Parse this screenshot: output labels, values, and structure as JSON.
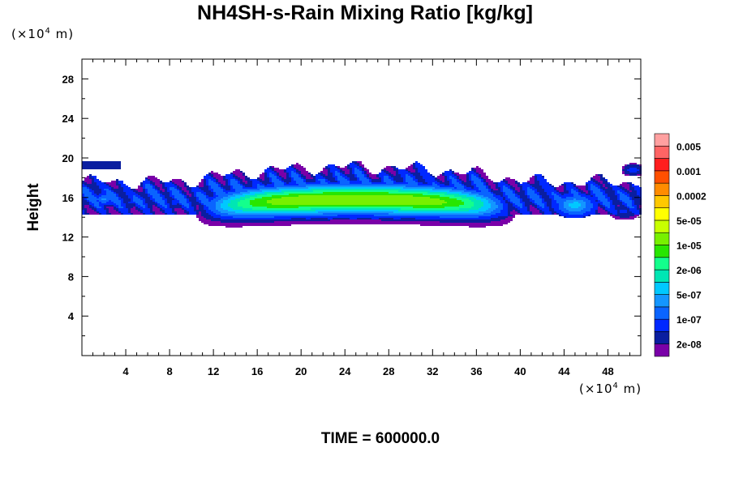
{
  "chart_data": {
    "type": "contour-fill",
    "title": "NH4SH-s-Rain Mixing Ratio [kg/kg]",
    "ylabel": "Height",
    "x_unit": {
      "prefix": "(×10",
      "exponent": "4",
      "suffix": " m)"
    },
    "y_unit": {
      "prefix": "(×10",
      "exponent": "4",
      "suffix": " m)"
    },
    "xlim": [
      0,
      51
    ],
    "ylim": [
      0,
      30
    ],
    "x_ticks": [
      4,
      8,
      12,
      16,
      20,
      24,
      28,
      32,
      36,
      40,
      44,
      48
    ],
    "y_ticks": [
      4,
      8,
      12,
      16,
      20,
      24,
      28
    ],
    "footer": "TIME = 600000.0",
    "colorbar": {
      "colors": [
        "#7a00a8",
        "#0a1ea0",
        "#0028ff",
        "#0a64ff",
        "#1496ff",
        "#00c8ff",
        "#00e6b4",
        "#14ff8c",
        "#28e600",
        "#78f000",
        "#c8ff00",
        "#ffff00",
        "#ffc800",
        "#ff8c00",
        "#ff5000",
        "#ff1e1e",
        "#ff6464",
        "#ffa0a0"
      ],
      "labels": [
        "2e-08",
        "1e-07",
        "5e-07",
        "2e-06",
        "1e-05",
        "5e-05",
        "0.0002",
        "0.001",
        "0.005"
      ]
    },
    "field": {
      "description_levels": "band of values centered near height 15-16, x 12-42",
      "core": {
        "x_center": 25,
        "x_halfwidth": 15,
        "y_center": 15.2,
        "thickness": 1.6,
        "peak_level": 11
      },
      "envelope": {
        "x_start": 1,
        "x_end": 51,
        "y_bottom": 14,
        "y_top": 19.5
      }
    }
  }
}
